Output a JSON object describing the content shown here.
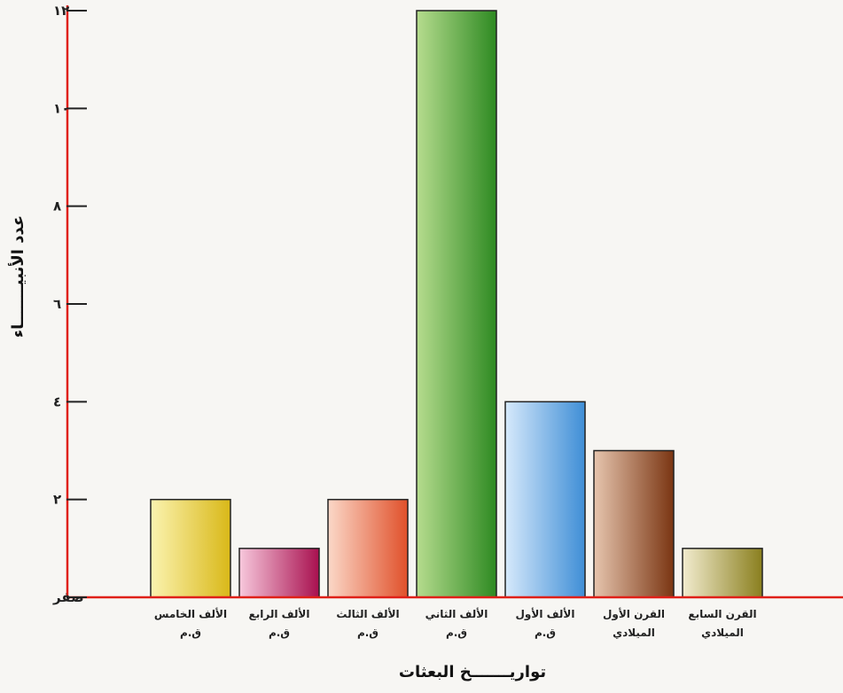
{
  "chart_data": {
    "type": "bar",
    "title": "",
    "xlabel": "تواريـــــــخ البعثات",
    "ylabel": "عدد الأنبيـــــــاء",
    "ylim": [
      0,
      12
    ],
    "yticks": [
      {
        "value": 0,
        "label": "صفر"
      },
      {
        "value": 2,
        "label": "٢"
      },
      {
        "value": 4,
        "label": "٤"
      },
      {
        "value": 6,
        "label": "٦"
      },
      {
        "value": 8,
        "label": "٨"
      },
      {
        "value": 10,
        "label": "١٠"
      },
      {
        "value": 12,
        "label": "١٢"
      }
    ],
    "categories": [
      [
        "الألف الخامس",
        "ق.م"
      ],
      [
        "الألف الرابع",
        "ق.م"
      ],
      [
        "الألف الثالث",
        "ق.م"
      ],
      [
        "الألف الثاني",
        "ق.م"
      ],
      [
        "الألف الأول",
        "ق.م"
      ],
      [
        "القرن الأول",
        "الميلادي"
      ],
      [
        "القرن السابع",
        "الميلادي"
      ]
    ],
    "values": [
      2,
      1,
      2,
      12,
      4,
      3,
      1
    ],
    "bar_colors": [
      [
        "#fbf3b0",
        "#d9b818"
      ],
      [
        "#f7c8dc",
        "#a8104f"
      ],
      [
        "#fbd8c8",
        "#e0502a"
      ],
      [
        "#b6dc8e",
        "#2e8a22"
      ],
      [
        "#d6e9fb",
        "#3f8ed6"
      ],
      [
        "#e6c5ae",
        "#7a3512"
      ],
      [
        "#f2eccf",
        "#8a7f1e"
      ]
    ],
    "axis_color": "#e02018",
    "grid": false
  }
}
